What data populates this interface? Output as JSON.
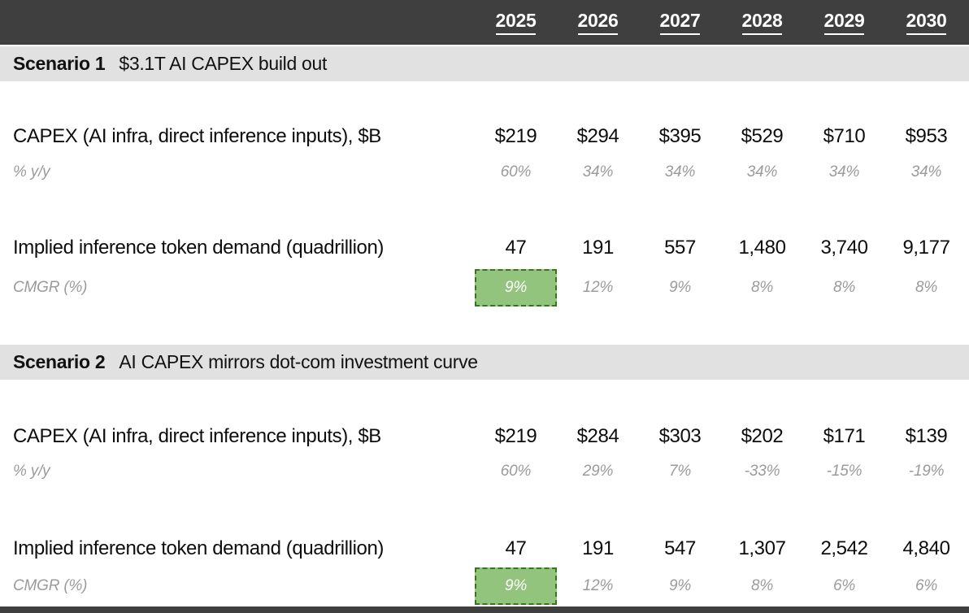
{
  "colors": {
    "header_bg": "#3f3f3f",
    "scenario_band_bg": "#e1e1e1",
    "highlight_green": "#93c47d",
    "highlight_border_green": "#38761d",
    "muted_text": "#9b9b9b"
  },
  "header": {
    "years": [
      "2025",
      "2026",
      "2027",
      "2028",
      "2029",
      "2030"
    ]
  },
  "scenarios": [
    {
      "name": "Scenario 1",
      "description": "$3.1T AI CAPEX build out",
      "capex": {
        "label": "CAPEX (AI infra, direct inference inputs), $B",
        "values": [
          "$219",
          "$294",
          "$395",
          "$529",
          "$710",
          "$953"
        ]
      },
      "capex_growth": {
        "label": "% y/y",
        "values": [
          "60%",
          "34%",
          "34%",
          "34%",
          "34%",
          "34%"
        ]
      },
      "tokens": {
        "label": "Implied inference token demand (quadrillion)",
        "values": [
          "47",
          "191",
          "557",
          "1,480",
          "3,740",
          "9,177"
        ]
      },
      "cmgr": {
        "label": "CMGR (%)",
        "values": [
          "9%",
          "12%",
          "9%",
          "8%",
          "8%",
          "8%"
        ],
        "highlighted_index": 0
      }
    },
    {
      "name": "Scenario 2",
      "description": "AI CAPEX mirrors dot-com investment curve",
      "capex": {
        "label": "CAPEX (AI infra, direct inference inputs), $B",
        "values": [
          "$219",
          "$284",
          "$303",
          "$202",
          "$171",
          "$139"
        ]
      },
      "capex_growth": {
        "label": "% y/y",
        "values": [
          "60%",
          "29%",
          "7%",
          "-33%",
          "-15%",
          "-19%"
        ]
      },
      "tokens": {
        "label": "Implied inference token demand (quadrillion)",
        "values": [
          "47",
          "191",
          "547",
          "1,307",
          "2,542",
          "4,840"
        ]
      },
      "cmgr": {
        "label": "CMGR (%)",
        "values": [
          "9%",
          "12%",
          "9%",
          "8%",
          "6%",
          "6%"
        ],
        "highlighted_index": 0
      }
    }
  ],
  "chart_data": {
    "type": "table",
    "title": "AI CAPEX scenarios and implied inference token demand",
    "columns": [
      "2025",
      "2026",
      "2027",
      "2028",
      "2029",
      "2030"
    ],
    "sections": [
      {
        "section": "Scenario 1 — $3.1T AI CAPEX build out",
        "rows": [
          {
            "label": "CAPEX (AI infra, direct inference inputs), $B",
            "values": [
              219,
              294,
              395,
              529,
              710,
              953
            ]
          },
          {
            "label": "% y/y",
            "values_pct": [
              60,
              34,
              34,
              34,
              34,
              34
            ]
          },
          {
            "label": "Implied inference token demand (quadrillion)",
            "values": [
              47,
              191,
              557,
              1480,
              3740,
              9177
            ]
          },
          {
            "label": "CMGR (%)",
            "values_pct": [
              9,
              12,
              9,
              8,
              8,
              8
            ],
            "highlighted_column": "2025"
          }
        ]
      },
      {
        "section": "Scenario 2 — AI CAPEX mirrors dot-com investment curve",
        "rows": [
          {
            "label": "CAPEX (AI infra, direct inference inputs), $B",
            "values": [
              219,
              284,
              303,
              202,
              171,
              139
            ]
          },
          {
            "label": "% y/y",
            "values_pct": [
              60,
              29,
              7,
              -33,
              -15,
              -19
            ]
          },
          {
            "label": "Implied inference token demand (quadrillion)",
            "values": [
              47,
              191,
              547,
              1307,
              2542,
              4840
            ]
          },
          {
            "label": "CMGR (%)",
            "values_pct": [
              9,
              12,
              9,
              8,
              6,
              6
            ],
            "highlighted_column": "2025"
          }
        ]
      }
    ],
    "layout": {
      "grid": false,
      "legend": "none",
      "highlight_style": "green fill with dark-green dashed border on 2025 CMGR cells"
    }
  }
}
